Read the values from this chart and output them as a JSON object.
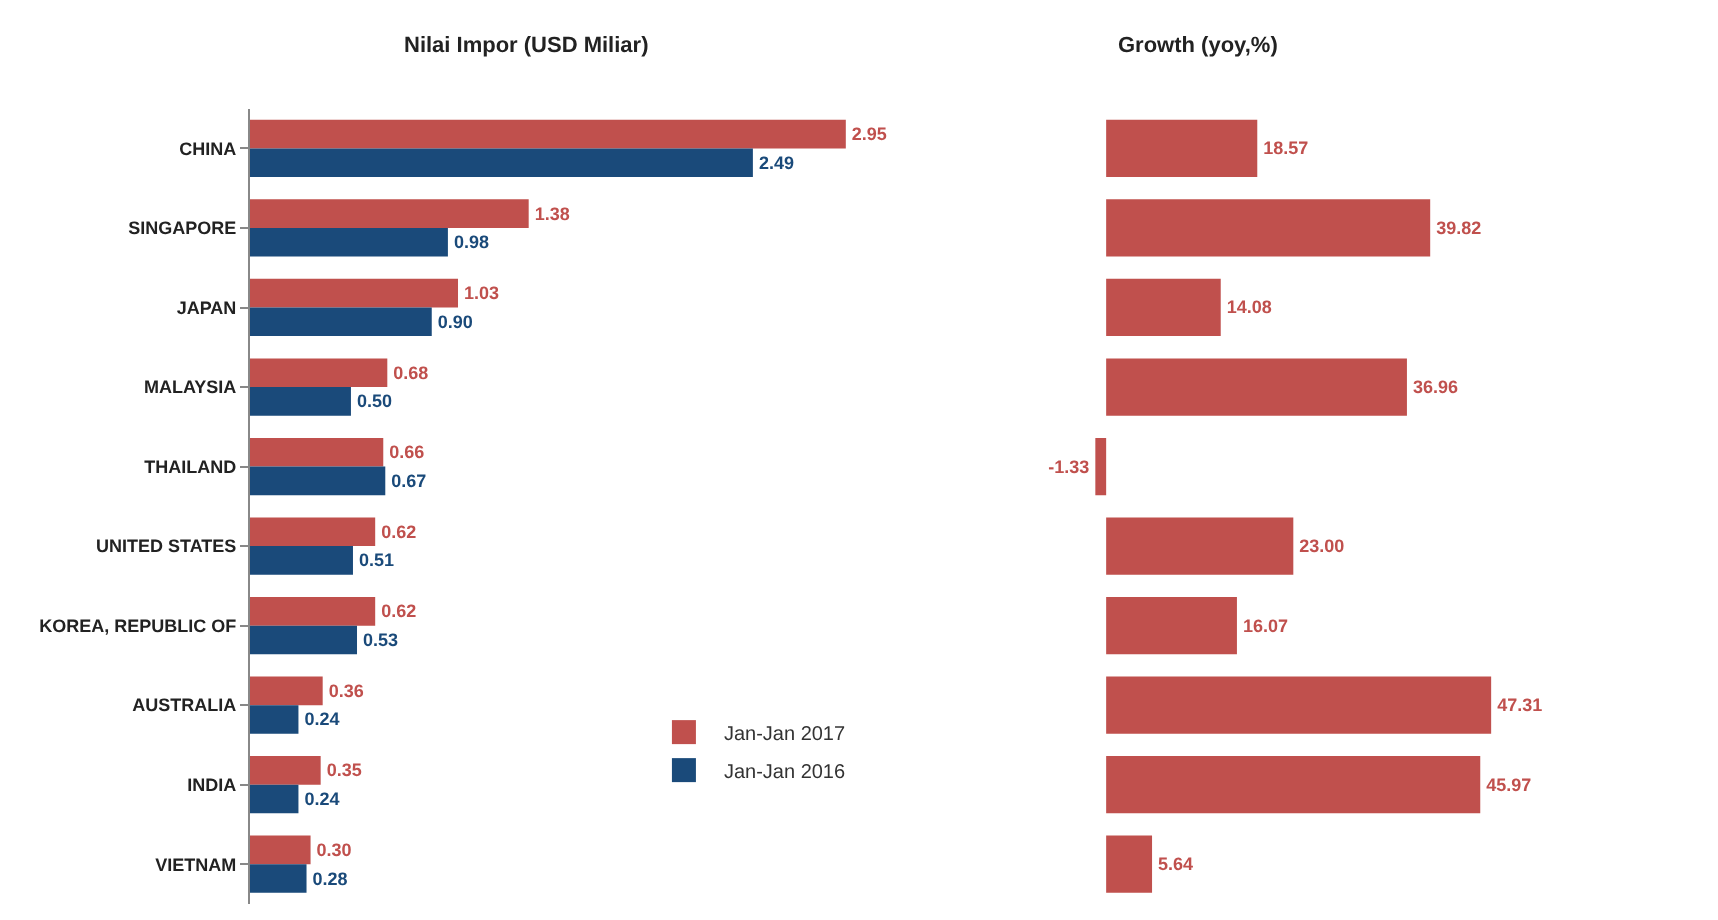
{
  "chart_data": [
    {
      "type": "bar",
      "orientation": "horizontal",
      "title": "Nilai Impor (USD Miliar)",
      "categories": [
        "CHINA",
        "SINGAPORE",
        "JAPAN",
        "MALAYSIA",
        "THAILAND",
        "UNITED STATES",
        "KOREA, REPUBLIC OF",
        "AUSTRALIA",
        "INDIA",
        "VIETNAM"
      ],
      "series": [
        {
          "name": "Jan-Jan 2017",
          "color": "#c0504d",
          "values": [
            2.95,
            1.38,
            1.03,
            0.68,
            0.66,
            0.62,
            0.62,
            0.36,
            0.35,
            0.3
          ],
          "value_labels": [
            "2.95",
            "1.38",
            "1.03",
            "0.68",
            "0.66",
            "0.62",
            "0.62",
            "0.36",
            "0.35",
            "0.30"
          ]
        },
        {
          "name": "Jan-Jan 2016",
          "color": "#1a4a7a",
          "values": [
            2.49,
            0.98,
            0.9,
            0.5,
            0.67,
            0.51,
            0.53,
            0.24,
            0.24,
            0.28
          ],
          "value_labels": [
            "2.49",
            "0.98",
            "0.90",
            "0.50",
            "0.67",
            "0.51",
            "0.53",
            "0.24",
            "0.24",
            "0.28"
          ]
        }
      ],
      "legend": "bottom right",
      "tick_labels": "y"
    },
    {
      "type": "bar",
      "orientation": "horizontal",
      "title": "Growth (yoy,%)",
      "categories": [
        null,
        null,
        null,
        null,
        null,
        null,
        null,
        null,
        null,
        null
      ],
      "series": [
        {
          "color": "#c0504d",
          "values": [
            18.57,
            39.82,
            14.08,
            36.96,
            -1.33,
            23.0,
            16.07,
            47.31,
            45.97,
            5.64
          ],
          "value_labels": [
            "18.57",
            "39.82",
            "14.08",
            "36.96",
            "-1.33",
            "23.00",
            "16.07",
            "47.31",
            "45.97",
            "5.64"
          ]
        }
      ],
      "legend": false,
      "tick_labels": false
    }
  ]
}
